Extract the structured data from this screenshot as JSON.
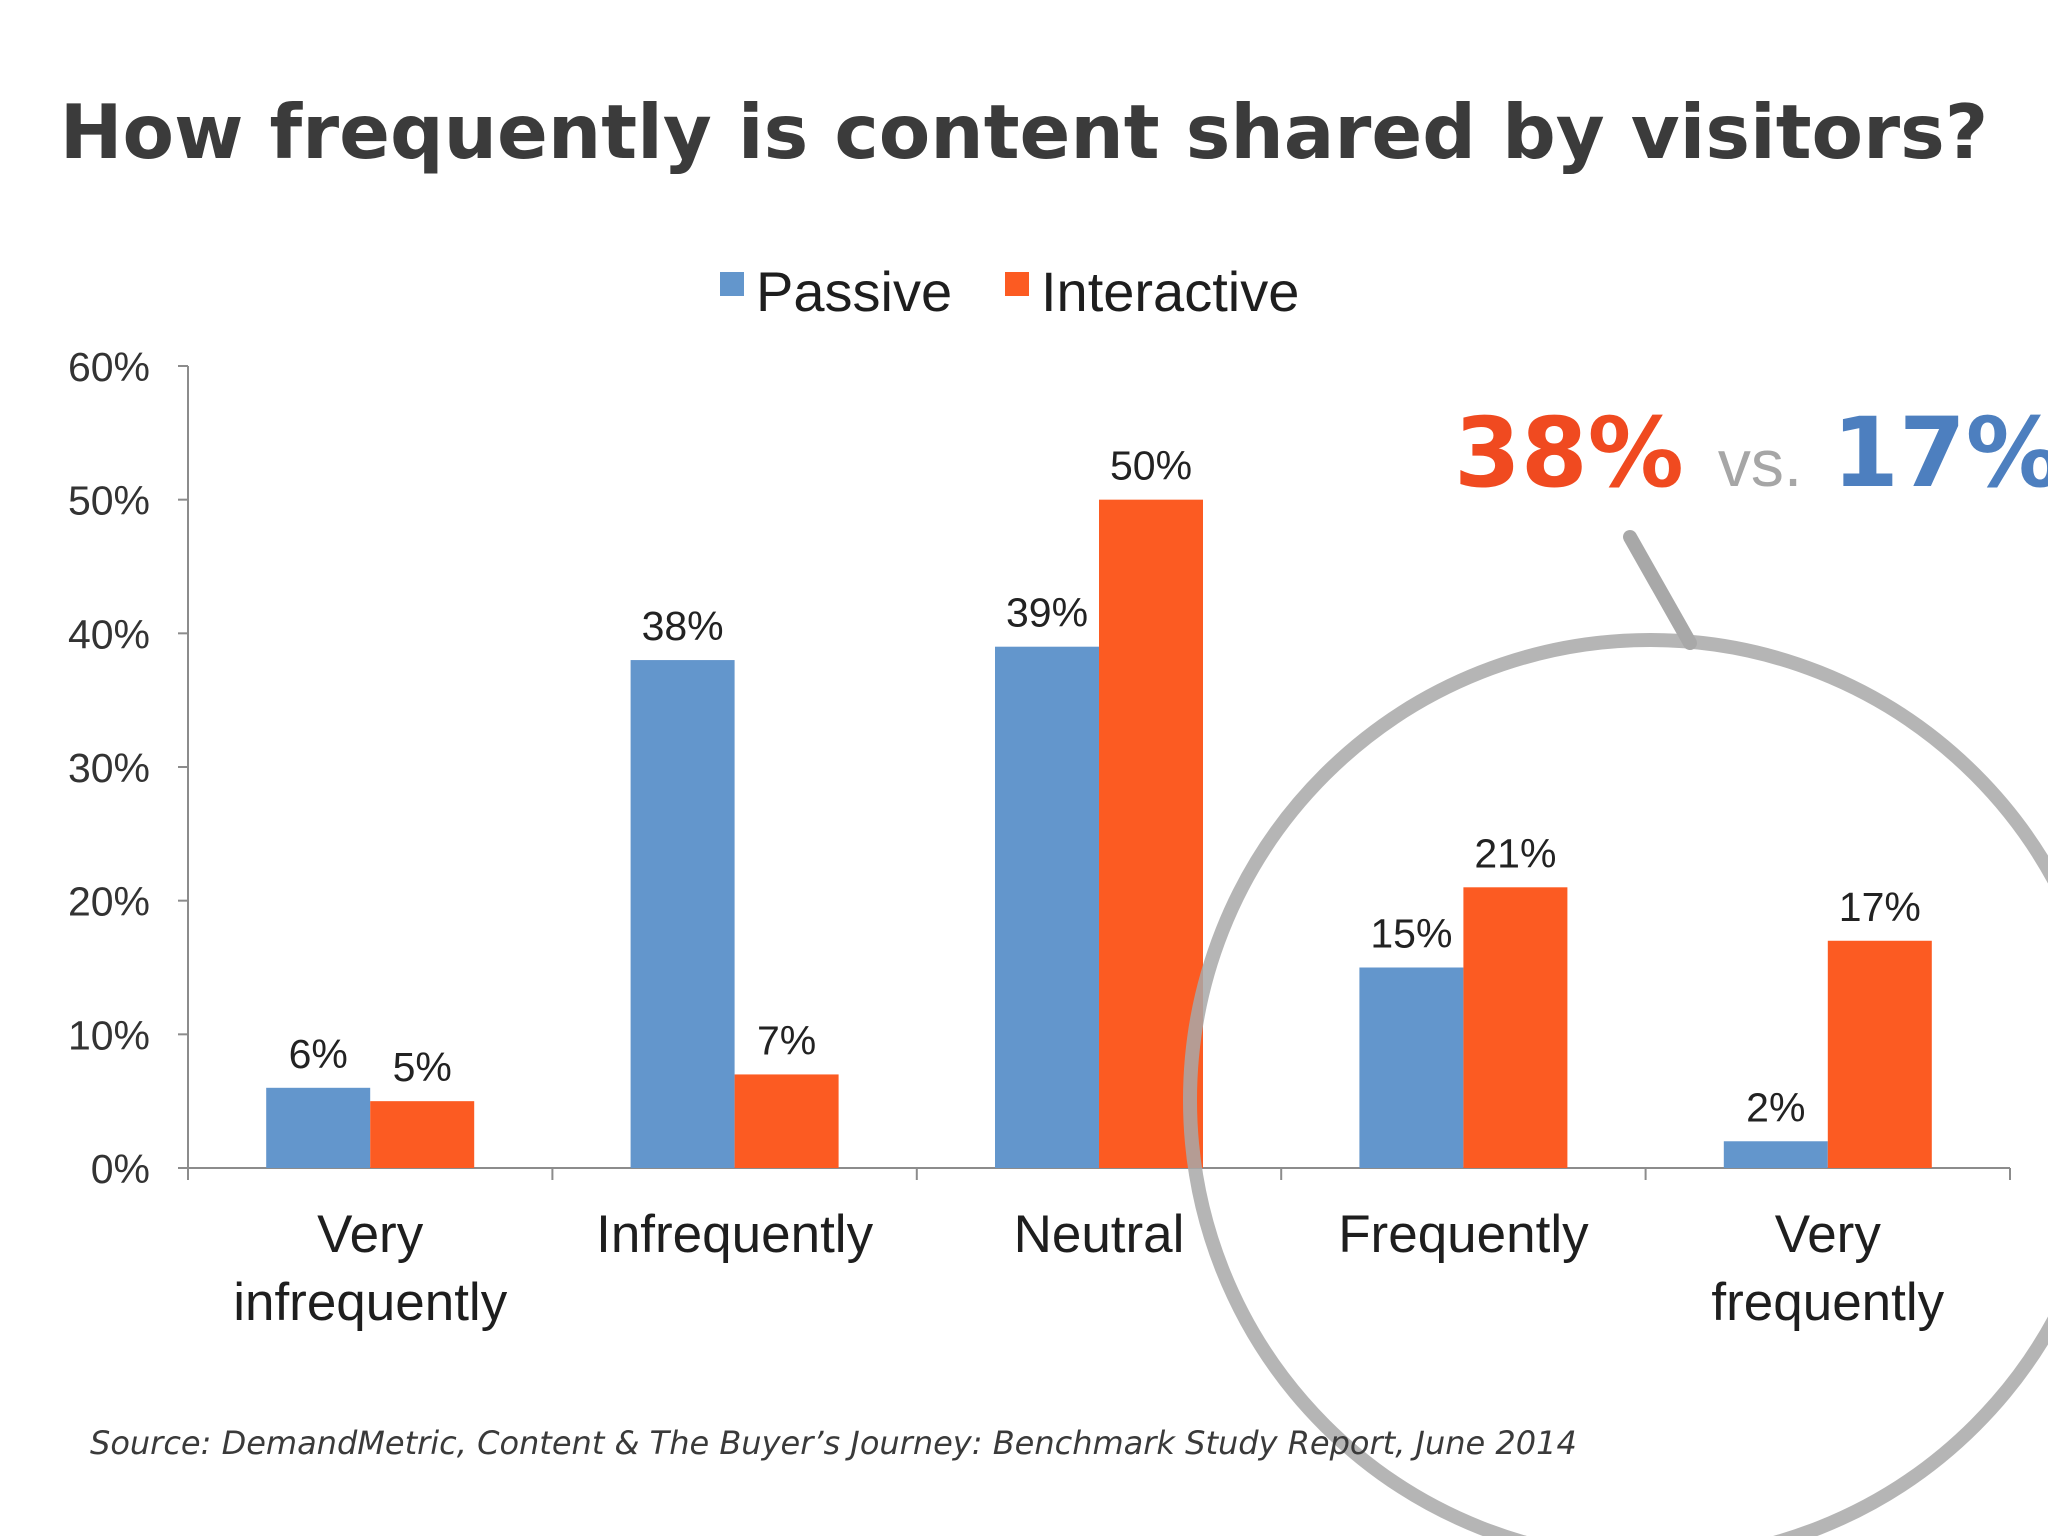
{
  "chart_data": {
    "type": "bar",
    "title": "How frequently is content shared by visitors?",
    "categories": [
      [
        "Very",
        "infrequently"
      ],
      [
        "Infrequently"
      ],
      [
        "Neutral"
      ],
      [
        "Frequently"
      ],
      [
        "Very",
        "frequently"
      ]
    ],
    "series": [
      {
        "name": "Passive",
        "color": "#6396cc",
        "values": [
          6,
          38,
          39,
          15,
          2
        ],
        "labels": [
          "6%",
          "38%",
          "39%",
          "15%",
          "2%"
        ]
      },
      {
        "name": "Interactive",
        "color": "#fc5b22",
        "values": [
          5,
          7,
          50,
          21,
          17
        ],
        "labels": [
          "5%",
          "7%",
          "50%",
          "21%",
          "17%"
        ]
      }
    ],
    "ylim": [
      0,
      60
    ],
    "yticks": [
      "0%",
      "10%",
      "20%",
      "30%",
      "40%",
      "50%",
      "60%"
    ],
    "legend_position": "top",
    "grid": false,
    "xlabel": "",
    "ylabel": ""
  },
  "callout": {
    "left_value": "38%",
    "left_color": "#f04a20",
    "separator": "vs.",
    "separator_color": "#a6a6a6",
    "right_value": "17%",
    "right_color": "#4d7fbf",
    "ring_color": "#a8a8a8"
  },
  "source": "Source: DemandMetric, Content & The Buyer’s Journey: Benchmark Study Report, June 2014"
}
